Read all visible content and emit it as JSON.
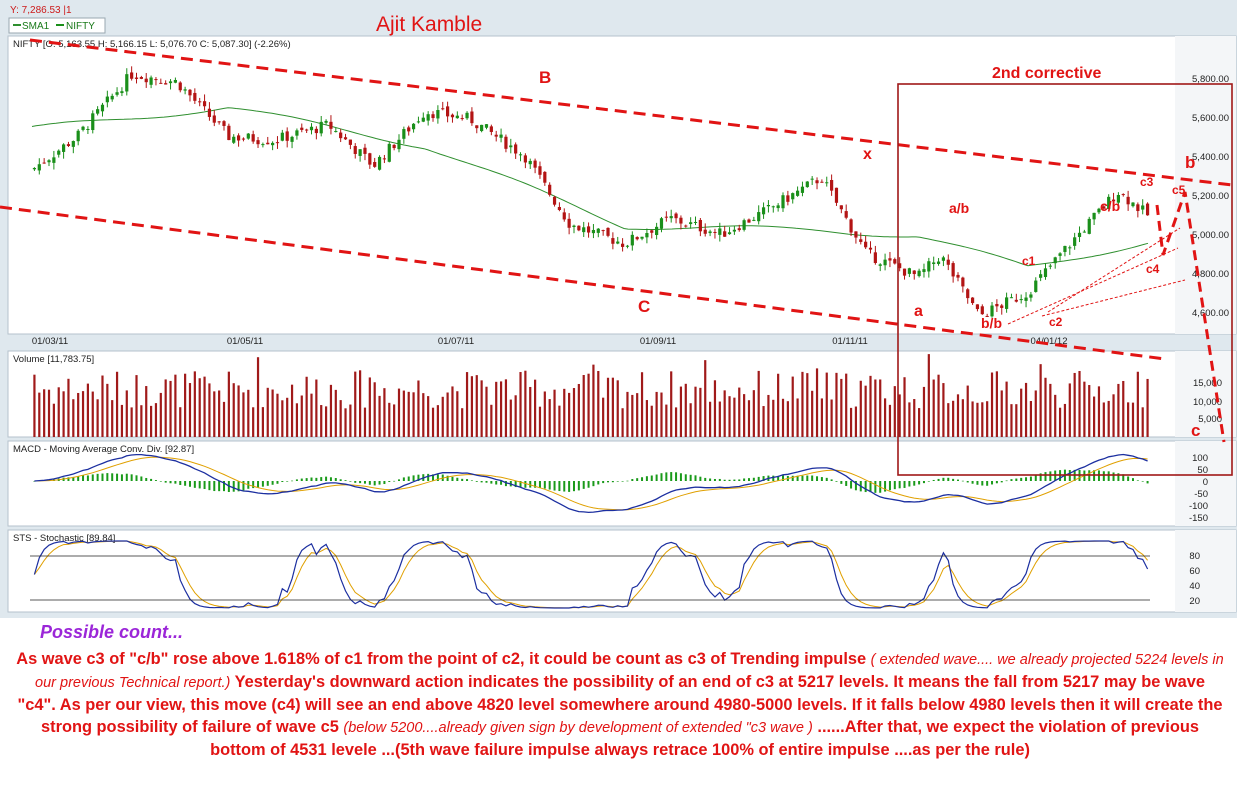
{
  "app": {
    "cursor_readout": "Y: 7,286.53 |1",
    "legend": [
      "SMA1",
      "NIFTY"
    ],
    "author": "Ajit Kamble"
  },
  "price_panel": {
    "title": "NIFTY [O: 5,163.55  H: 5,166.15  L: 5,076.70  C: 5,087.30] (-2.26%)",
    "y_ticks": [
      "5,800.00",
      "5,600.00",
      "5,400.00",
      "5,200.00",
      "5,000.00",
      "4,800.00",
      "4,600.00"
    ],
    "x_ticks": [
      "01/03/11",
      "01/05/11",
      "01/07/11",
      "01/09/11",
      "01/11/11",
      "04/01/12"
    ]
  },
  "volume_panel": {
    "title": "Volume [11,783.75]",
    "y_ticks": [
      "15,000",
      "10,000",
      "5,000"
    ]
  },
  "macd_panel": {
    "title": "MACD - Moving Average Conv. Div. [92.87]",
    "y_ticks": [
      "100",
      "50",
      "0",
      "-50",
      "-100",
      "-150"
    ]
  },
  "sts_panel": {
    "title": "STS - Stochastic [89.84]",
    "y_ticks": [
      "80",
      "60",
      "40",
      "20"
    ]
  },
  "wave_labels": {
    "B": "B",
    "C": "C",
    "x": "x",
    "a": "a",
    "a_b": "a/b",
    "b_b": "b/b",
    "c1": "c1",
    "c2": "c2",
    "c_b": "c/b",
    "c3": "c3",
    "c4": "c4",
    "c5": "c5",
    "b": "b",
    "c": "c",
    "second_corrective": "2nd corrective"
  },
  "annotation": {
    "heading": "Possible count...",
    "p1": "As wave c3 of \"c/b\" rose above 1.618% of c1 from the point of c2, it could be count as c3 of Trending impulse",
    "p1_italic": "( extended wave.... we already projected 5224 levels in our previous Technical  report.)",
    "p2": "Yesterday's downward action indicates the possibility of an end of c3 at 5217 levels. It means the fall from 5217 may be wave \"c4\". As per our view, this move (c4) will see an end above 4820 level somewhere around 4980-5000 levels. If it falls below 4980 levels then it will create the strong possibility of failure of wave c5",
    "p2_italic": "(below 5200....already given sign by development of  extended \"c3 wave )",
    "p3": "......After that, we expect the violation of previous bottom of 4531 levele ...(5th wave failure impulse always retrace 100% of entire impulse ....as per the rule)"
  },
  "colors": {
    "up_candle": "#1a8f1a",
    "down_candle": "#b31414",
    "sma": "#2f8f2f",
    "volume_bar": "#a01a1a",
    "macd_line": "#1c2fa0",
    "signal_line": "#e0a000",
    "histogram": "#1a9a1a",
    "annotation_red": "#e11414",
    "heading_purple": "#9b26d8"
  },
  "chart_data": {
    "type": "candlestick",
    "series_name": "NIFTY",
    "x_range": [
      "01/03/11",
      "11/01/12"
    ],
    "price_ylim": [
      4500,
      5850
    ],
    "close_path": [
      {
        "date": "01/03/11",
        "close": 5330
      },
      {
        "date": "15/03/11",
        "close": 5500
      },
      {
        "date": "01/04/11",
        "close": 5820
      },
      {
        "date": "15/04/11",
        "close": 5780
      },
      {
        "date": "01/05/11",
        "close": 5500
      },
      {
        "date": "15/05/11",
        "close": 5480
      },
      {
        "date": "01/06/11",
        "close": 5560
      },
      {
        "date": "15/06/11",
        "close": 5350
      },
      {
        "date": "01/07/11",
        "close": 5630
      },
      {
        "date": "15/07/11",
        "close": 5590
      },
      {
        "date": "01/08/11",
        "close": 5400
      },
      {
        "date": "15/08/11",
        "close": 5050
      },
      {
        "date": "01/09/11",
        "close": 4950
      },
      {
        "date": "15/09/11",
        "close": 5080
      },
      {
        "date": "01/10/11",
        "close": 5000
      },
      {
        "date": "15/10/11",
        "close": 5120
      },
      {
        "date": "01/11/11",
        "close": 5290
      },
      {
        "date": "15/11/11",
        "close": 4900
      },
      {
        "date": "01/12/11",
        "close": 4780
      },
      {
        "date": "08/12/11",
        "close": 4890
      },
      {
        "date": "20/12/11",
        "close": 4580
      },
      {
        "date": "04/01/12",
        "close": 4700
      },
      {
        "date": "15/01/12",
        "close": 4910
      },
      {
        "date": "01/02/12",
        "close": 5220
      },
      {
        "date": "11/02/12",
        "close": 5087
      }
    ],
    "sma_path": [
      {
        "date": "01/03/11",
        "value": 5540
      },
      {
        "date": "01/05/11",
        "value": 5650
      },
      {
        "date": "01/07/11",
        "value": 5450
      },
      {
        "date": "01/09/11",
        "value": 5040
      },
      {
        "date": "01/11/11",
        "value": 5020
      },
      {
        "date": "01/12/11",
        "value": 4990
      },
      {
        "date": "04/01/12",
        "value": 4830
      },
      {
        "date": "11/02/12",
        "value": 4960
      }
    ],
    "volume_ylim": [
      0,
      18000
    ],
    "macd_ylim": [
      -180,
      120
    ],
    "stochastic_ylim": [
      0,
      100
    ],
    "stochastic_levels": [
      80,
      20
    ]
  }
}
